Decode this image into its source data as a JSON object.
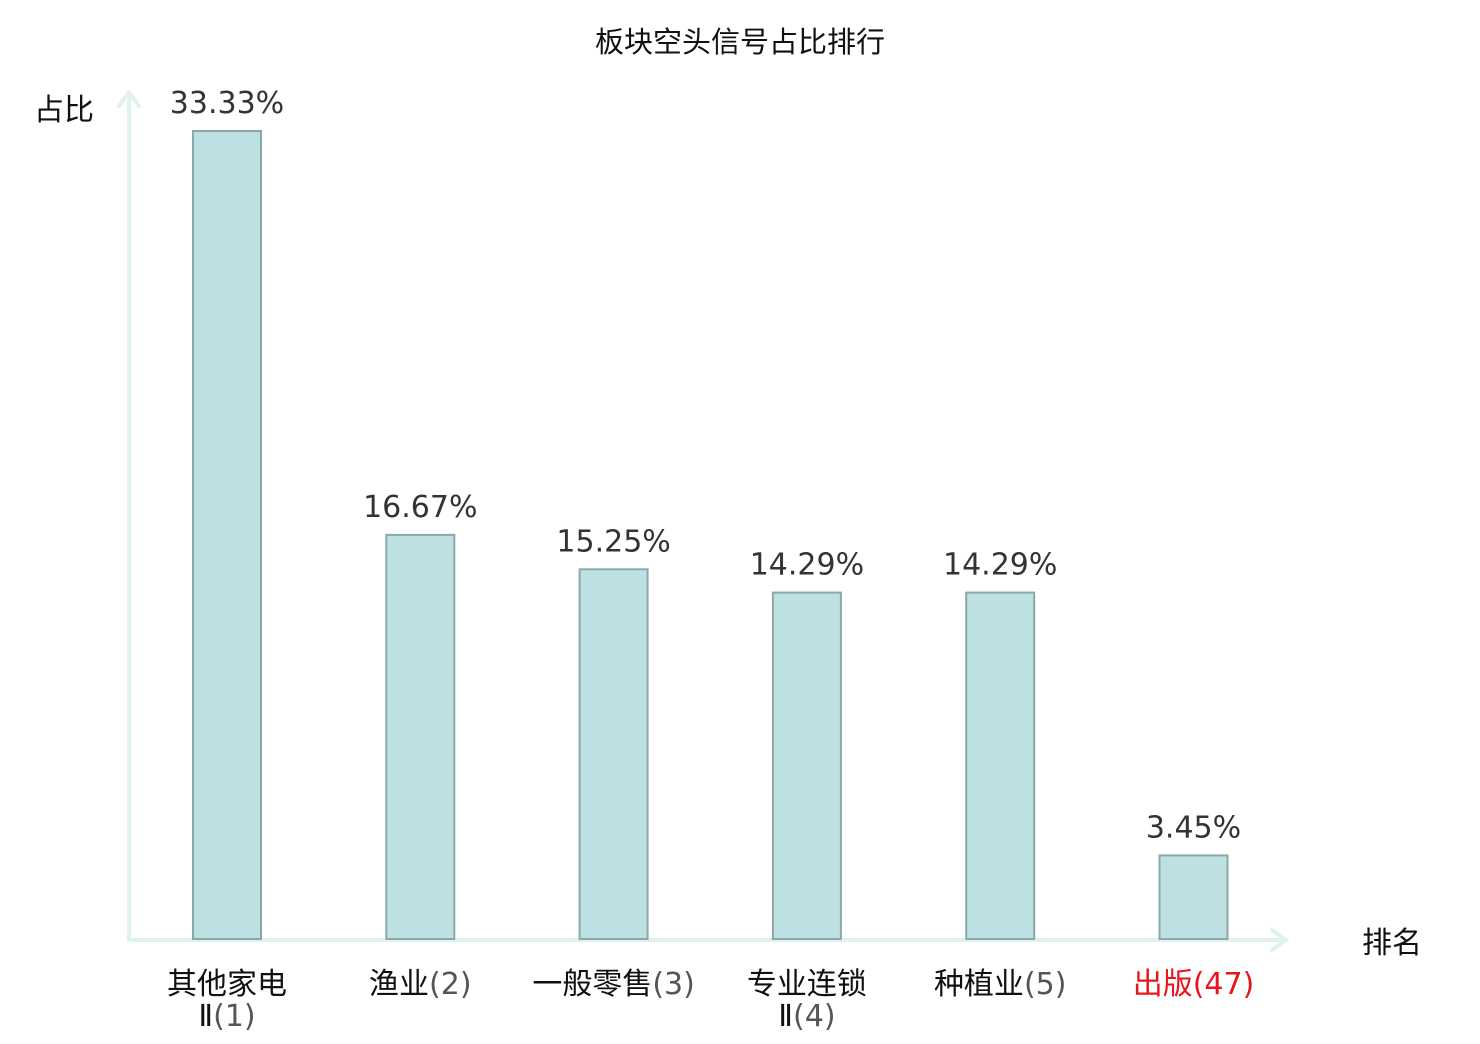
{
  "chart_data": {
    "type": "bar",
    "title": "板块空头信号占比排行",
    "xlabel": "排名",
    "ylabel": "占比",
    "categories": [
      {
        "name": "其他家电Ⅱ",
        "rank": "(1)",
        "lines": [
          "其他家电",
          "Ⅱ(1)"
        ],
        "highlight": false
      },
      {
        "name": "渔业",
        "rank": "(2)",
        "lines": [
          "渔业(2)"
        ],
        "highlight": false
      },
      {
        "name": "一般零售",
        "rank": "(3)",
        "lines": [
          "一般零售(3)"
        ],
        "highlight": false
      },
      {
        "name": "专业连锁Ⅱ",
        "rank": "(4)",
        "lines": [
          "专业连锁",
          "Ⅱ(4)"
        ],
        "highlight": false
      },
      {
        "name": "种植业",
        "rank": "(5)",
        "lines": [
          "种植业(5)"
        ],
        "highlight": false
      },
      {
        "name": "出版",
        "rank": "(47)",
        "lines": [
          "出版(47)"
        ],
        "highlight": true
      }
    ],
    "values": [
      33.33,
      16.67,
      15.25,
      14.29,
      14.29,
      3.45
    ],
    "value_labels": [
      "33.33%",
      "16.67%",
      "15.25%",
      "14.29%",
      "14.29%",
      "3.45%"
    ],
    "ylim": [
      0,
      33.33
    ],
    "grid": false,
    "legend": "none"
  },
  "colors": {
    "bar_fill": "#bde0e2",
    "bar_stroke": "#8aa8a9",
    "axis": "#e0f2ef",
    "label_text": "#111111",
    "rank_text": "#555555",
    "highlight_text": "#e8161b",
    "value_text": "#333333"
  }
}
